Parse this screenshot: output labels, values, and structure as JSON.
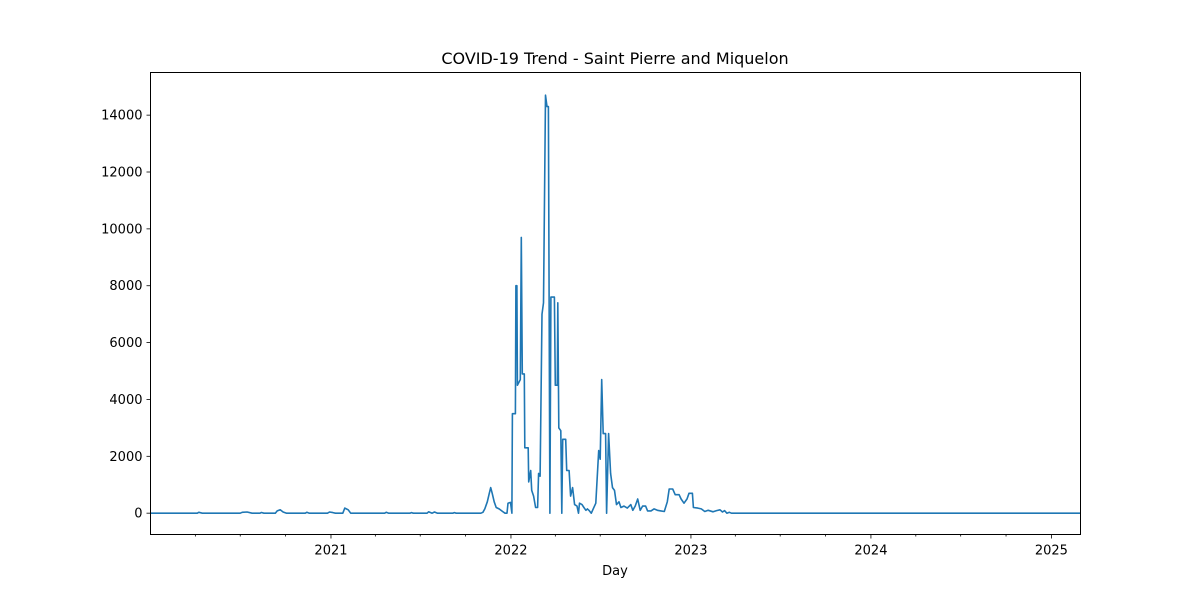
{
  "chart_data": {
    "type": "line",
    "title": "COVID-19 Trend - Saint Pierre and Miquelon",
    "xlabel": "Day",
    "ylabel": "",
    "xlim": [
      "2020-01-01",
      "2025-03-01"
    ],
    "ylim": [
      -750,
      15500
    ],
    "x_major_ticks": [
      {
        "date": "2021-01-01",
        "label": "2021"
      },
      {
        "date": "2022-01-01",
        "label": "2022"
      },
      {
        "date": "2023-01-01",
        "label": "2023"
      },
      {
        "date": "2024-01-01",
        "label": "2024"
      },
      {
        "date": "2025-01-01",
        "label": "2025"
      }
    ],
    "x_minor_ticks": [
      "2020-04-01",
      "2020-07-01",
      "2020-10-01",
      "2021-04-01",
      "2021-07-01",
      "2021-10-01",
      "2022-04-01",
      "2022-07-01",
      "2022-10-01",
      "2023-04-01",
      "2023-07-01",
      "2023-10-01",
      "2024-04-01",
      "2024-07-01",
      "2024-10-01"
    ],
    "y_ticks": [
      0,
      2000,
      4000,
      6000,
      8000,
      10000,
      12000,
      14000
    ],
    "grid": false,
    "color": "#1f77b4",
    "series": [
      {
        "points": [
          [
            "2020-01-01",
            0
          ],
          [
            "2020-04-05",
            0
          ],
          [
            "2020-04-08",
            30
          ],
          [
            "2020-04-15",
            0
          ],
          [
            "2020-07-01",
            0
          ],
          [
            "2020-07-05",
            30
          ],
          [
            "2020-07-15",
            40
          ],
          [
            "2020-07-25",
            0
          ],
          [
            "2020-08-10",
            0
          ],
          [
            "2020-08-13",
            25
          ],
          [
            "2020-08-18",
            0
          ],
          [
            "2020-09-10",
            0
          ],
          [
            "2020-09-14",
            80
          ],
          [
            "2020-09-20",
            120
          ],
          [
            "2020-09-26",
            40
          ],
          [
            "2020-10-03",
            0
          ],
          [
            "2020-11-10",
            0
          ],
          [
            "2020-11-13",
            30
          ],
          [
            "2020-11-18",
            0
          ],
          [
            "2020-12-25",
            0
          ],
          [
            "2020-12-29",
            40
          ],
          [
            "2021-01-05",
            20
          ],
          [
            "2021-01-10",
            0
          ],
          [
            "2021-01-25",
            0
          ],
          [
            "2021-01-29",
            180
          ],
          [
            "2021-02-05",
            120
          ],
          [
            "2021-02-10",
            0
          ],
          [
            "2021-04-20",
            0
          ],
          [
            "2021-04-23",
            30
          ],
          [
            "2021-04-28",
            0
          ],
          [
            "2021-06-10",
            0
          ],
          [
            "2021-06-13",
            20
          ],
          [
            "2021-06-17",
            0
          ],
          [
            "2021-07-15",
            0
          ],
          [
            "2021-07-18",
            50
          ],
          [
            "2021-07-25",
            0
          ],
          [
            "2021-07-30",
            40
          ],
          [
            "2021-08-05",
            0
          ],
          [
            "2021-09-05",
            0
          ],
          [
            "2021-09-08",
            20
          ],
          [
            "2021-09-12",
            0
          ],
          [
            "2021-11-01",
            0
          ],
          [
            "2021-11-05",
            30
          ],
          [
            "2021-11-09",
            150
          ],
          [
            "2021-11-14",
            400
          ],
          [
            "2021-11-18",
            700
          ],
          [
            "2021-11-21",
            900
          ],
          [
            "2021-11-24",
            700
          ],
          [
            "2021-11-28",
            400
          ],
          [
            "2021-12-02",
            200
          ],
          [
            "2021-12-08",
            150
          ],
          [
            "2021-12-15",
            60
          ],
          [
            "2021-12-20",
            0
          ],
          [
            "2021-12-24",
            0
          ],
          [
            "2021-12-26",
            350
          ],
          [
            "2021-12-31",
            380
          ],
          [
            "2022-01-03",
            0
          ],
          [
            "2022-01-04",
            3500
          ],
          [
            "2022-01-10",
            3500
          ],
          [
            "2022-01-11",
            8000
          ],
          [
            "2022-01-13",
            8000
          ],
          [
            "2022-01-14",
            4500
          ],
          [
            "2022-01-20",
            4700
          ],
          [
            "2022-01-22",
            9700
          ],
          [
            "2022-01-24",
            4900
          ],
          [
            "2022-01-28",
            4900
          ],
          [
            "2022-01-29",
            2300
          ],
          [
            "2022-02-05",
            2300
          ],
          [
            "2022-02-06",
            1100
          ],
          [
            "2022-02-10",
            1500
          ],
          [
            "2022-02-12",
            800
          ],
          [
            "2022-02-16",
            600
          ],
          [
            "2022-02-20",
            200
          ],
          [
            "2022-02-24",
            200
          ],
          [
            "2022-02-26",
            1400
          ],
          [
            "2022-03-01",
            1300
          ],
          [
            "2022-03-05",
            7000
          ],
          [
            "2022-03-08",
            7400
          ],
          [
            "2022-03-12",
            14700
          ],
          [
            "2022-03-15",
            14300
          ],
          [
            "2022-03-18",
            14300
          ],
          [
            "2022-03-21",
            0
          ],
          [
            "2022-03-23",
            7600
          ],
          [
            "2022-03-30",
            7600
          ],
          [
            "2022-04-01",
            4500
          ],
          [
            "2022-04-05",
            4500
          ],
          [
            "2022-04-06",
            7400
          ],
          [
            "2022-04-08",
            3000
          ],
          [
            "2022-04-12",
            2900
          ],
          [
            "2022-04-14",
            0
          ],
          [
            "2022-04-16",
            2600
          ],
          [
            "2022-04-22",
            2600
          ],
          [
            "2022-04-24",
            1500
          ],
          [
            "2022-04-29",
            1500
          ],
          [
            "2022-05-02",
            600
          ],
          [
            "2022-05-06",
            900
          ],
          [
            "2022-05-10",
            300
          ],
          [
            "2022-05-15",
            250
          ],
          [
            "2022-05-18",
            0
          ],
          [
            "2022-05-20",
            350
          ],
          [
            "2022-05-25",
            300
          ],
          [
            "2022-05-29",
            200
          ],
          [
            "2022-06-02",
            100
          ],
          [
            "2022-06-05",
            150
          ],
          [
            "2022-06-08",
            100
          ],
          [
            "2022-06-13",
            0
          ],
          [
            "2022-06-16",
            120
          ],
          [
            "2022-06-22",
            350
          ],
          [
            "2022-06-28",
            2200
          ],
          [
            "2022-07-01",
            1900
          ],
          [
            "2022-07-04",
            4700
          ],
          [
            "2022-07-07",
            2800
          ],
          [
            "2022-07-12",
            2800
          ],
          [
            "2022-07-14",
            0
          ],
          [
            "2022-07-16",
            1400
          ],
          [
            "2022-07-18",
            2800
          ],
          [
            "2022-07-22",
            1400
          ],
          [
            "2022-07-26",
            900
          ],
          [
            "2022-07-30",
            800
          ],
          [
            "2022-08-03",
            300
          ],
          [
            "2022-08-08",
            400
          ],
          [
            "2022-08-12",
            200
          ],
          [
            "2022-08-18",
            250
          ],
          [
            "2022-08-25",
            180
          ],
          [
            "2022-09-01",
            300
          ],
          [
            "2022-09-05",
            100
          ],
          [
            "2022-09-10",
            250
          ],
          [
            "2022-09-15",
            500
          ],
          [
            "2022-09-20",
            100
          ],
          [
            "2022-09-25",
            250
          ],
          [
            "2022-10-01",
            250
          ],
          [
            "2022-10-05",
            80
          ],
          [
            "2022-10-12",
            80
          ],
          [
            "2022-10-18",
            150
          ],
          [
            "2022-10-25",
            100
          ],
          [
            "2022-11-01",
            80
          ],
          [
            "2022-11-08",
            60
          ],
          [
            "2022-11-14",
            400
          ],
          [
            "2022-11-18",
            850
          ],
          [
            "2022-11-25",
            850
          ],
          [
            "2022-11-30",
            650
          ],
          [
            "2022-12-08",
            650
          ],
          [
            "2022-12-12",
            500
          ],
          [
            "2022-12-18",
            350
          ],
          [
            "2022-12-24",
            500
          ],
          [
            "2022-12-28",
            700
          ],
          [
            "2023-01-04",
            700
          ],
          [
            "2023-01-06",
            200
          ],
          [
            "2023-01-15",
            180
          ],
          [
            "2023-01-22",
            150
          ],
          [
            "2023-01-29",
            60
          ],
          [
            "2023-02-05",
            100
          ],
          [
            "2023-02-15",
            50
          ],
          [
            "2023-02-22",
            90
          ],
          [
            "2023-03-01",
            120
          ],
          [
            "2023-03-06",
            40
          ],
          [
            "2023-03-10",
            90
          ],
          [
            "2023-03-15",
            0
          ],
          [
            "2023-03-20",
            30
          ],
          [
            "2023-03-24",
            0
          ],
          [
            "2025-03-01",
            0
          ]
        ]
      }
    ]
  }
}
